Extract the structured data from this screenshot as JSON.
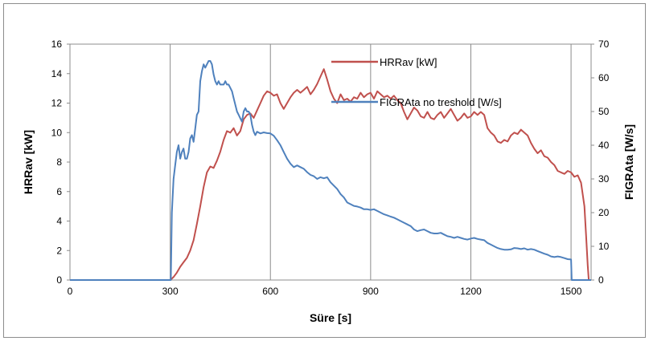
{
  "chart_data": {
    "type": "line",
    "xlabel": "Süre [s]",
    "ylabel_left": "HRRav [kW]",
    "ylabel_right": "FIGRAta [W/s]",
    "xlim": [
      0,
      1560
    ],
    "ylim_left": [
      0,
      16
    ],
    "ylim_right": [
      0,
      70
    ],
    "x_ticks": [
      0,
      300,
      600,
      900,
      1200,
      1500
    ],
    "y_ticks_left": [
      0,
      2,
      4,
      6,
      8,
      10,
      12,
      14,
      16
    ],
    "y_ticks_right": [
      0,
      10,
      20,
      30,
      40,
      50,
      60,
      70
    ],
    "grid": "vertical",
    "legend_position": "top-right",
    "series": [
      {
        "name": "HRRav [kW]",
        "axis": "left",
        "color": "#c0504d",
        "points": [
          [
            0,
            0
          ],
          [
            300,
            0
          ],
          [
            305,
            0.1
          ],
          [
            310,
            0.2
          ],
          [
            320,
            0.5
          ],
          [
            330,
            0.9
          ],
          [
            340,
            1.2
          ],
          [
            350,
            1.5
          ],
          [
            360,
            2.0
          ],
          [
            370,
            2.7
          ],
          [
            380,
            3.8
          ],
          [
            390,
            5.0
          ],
          [
            400,
            6.3
          ],
          [
            410,
            7.3
          ],
          [
            420,
            7.7
          ],
          [
            430,
            7.6
          ],
          [
            440,
            8.1
          ],
          [
            450,
            8.7
          ],
          [
            460,
            9.5
          ],
          [
            470,
            10.1
          ],
          [
            480,
            10.0
          ],
          [
            490,
            10.3
          ],
          [
            500,
            9.8
          ],
          [
            510,
            10.1
          ],
          [
            520,
            10.9
          ],
          [
            530,
            11.2
          ],
          [
            540,
            11.3
          ],
          [
            550,
            11.0
          ],
          [
            560,
            11.5
          ],
          [
            570,
            12.0
          ],
          [
            580,
            12.5
          ],
          [
            590,
            12.8
          ],
          [
            600,
            12.7
          ],
          [
            610,
            12.5
          ],
          [
            620,
            12.6
          ],
          [
            630,
            12.0
          ],
          [
            640,
            11.6
          ],
          [
            650,
            12.0
          ],
          [
            660,
            12.4
          ],
          [
            670,
            12.7
          ],
          [
            680,
            12.9
          ],
          [
            690,
            12.7
          ],
          [
            700,
            12.9
          ],
          [
            710,
            13.1
          ],
          [
            720,
            12.6
          ],
          [
            730,
            12.9
          ],
          [
            740,
            13.3
          ],
          [
            750,
            13.8
          ],
          [
            760,
            14.3
          ],
          [
            770,
            13.6
          ],
          [
            780,
            12.8
          ],
          [
            790,
            12.3
          ],
          [
            800,
            12.0
          ],
          [
            810,
            12.6
          ],
          [
            820,
            12.2
          ],
          [
            830,
            12.3
          ],
          [
            840,
            12.1
          ],
          [
            850,
            12.4
          ],
          [
            860,
            12.3
          ],
          [
            870,
            12.7
          ],
          [
            880,
            12.4
          ],
          [
            890,
            12.6
          ],
          [
            900,
            12.7
          ],
          [
            910,
            12.3
          ],
          [
            920,
            12.8
          ],
          [
            930,
            12.6
          ],
          [
            940,
            12.4
          ],
          [
            950,
            12.5
          ],
          [
            960,
            12.3
          ],
          [
            970,
            12.5
          ],
          [
            980,
            12.2
          ],
          [
            990,
            12.0
          ],
          [
            1000,
            11.4
          ],
          [
            1010,
            10.9
          ],
          [
            1020,
            11.3
          ],
          [
            1030,
            11.7
          ],
          [
            1040,
            11.5
          ],
          [
            1050,
            11.1
          ],
          [
            1060,
            11.0
          ],
          [
            1070,
            11.4
          ],
          [
            1080,
            11.0
          ],
          [
            1090,
            10.9
          ],
          [
            1100,
            11.2
          ],
          [
            1110,
            11.4
          ],
          [
            1120,
            11.0
          ],
          [
            1130,
            11.3
          ],
          [
            1140,
            11.6
          ],
          [
            1150,
            11.2
          ],
          [
            1160,
            10.8
          ],
          [
            1170,
            11.0
          ],
          [
            1180,
            11.3
          ],
          [
            1190,
            11.0
          ],
          [
            1200,
            11.1
          ],
          [
            1210,
            11.4
          ],
          [
            1220,
            11.2
          ],
          [
            1230,
            11.4
          ],
          [
            1240,
            11.2
          ],
          [
            1250,
            10.3
          ],
          [
            1260,
            10.0
          ],
          [
            1270,
            9.8
          ],
          [
            1280,
            9.4
          ],
          [
            1290,
            9.3
          ],
          [
            1300,
            9.5
          ],
          [
            1310,
            9.4
          ],
          [
            1320,
            9.8
          ],
          [
            1330,
            10.0
          ],
          [
            1340,
            9.9
          ],
          [
            1350,
            10.2
          ],
          [
            1360,
            10.0
          ],
          [
            1370,
            9.8
          ],
          [
            1380,
            9.3
          ],
          [
            1390,
            8.9
          ],
          [
            1400,
            8.6
          ],
          [
            1410,
            8.8
          ],
          [
            1420,
            8.4
          ],
          [
            1430,
            8.3
          ],
          [
            1440,
            8.0
          ],
          [
            1450,
            7.8
          ],
          [
            1460,
            7.4
          ],
          [
            1470,
            7.3
          ],
          [
            1480,
            7.2
          ],
          [
            1490,
            7.4
          ],
          [
            1500,
            7.3
          ],
          [
            1510,
            7.0
          ],
          [
            1520,
            7.1
          ],
          [
            1530,
            6.6
          ],
          [
            1540,
            5.0
          ],
          [
            1545,
            3.0
          ],
          [
            1550,
            1.0
          ],
          [
            1553,
            0
          ]
        ]
      },
      {
        "name": "FIGRAta no treshold [W/s]",
        "axis": "right",
        "color": "#4f81bd",
        "points": [
          [
            0,
            0
          ],
          [
            302,
            0
          ],
          [
            305,
            20
          ],
          [
            310,
            30
          ],
          [
            315,
            34
          ],
          [
            320,
            38
          ],
          [
            325,
            40
          ],
          [
            330,
            36
          ],
          [
            335,
            38
          ],
          [
            340,
            39
          ],
          [
            345,
            36
          ],
          [
            350,
            36
          ],
          [
            355,
            38
          ],
          [
            360,
            42
          ],
          [
            365,
            43
          ],
          [
            370,
            41
          ],
          [
            375,
            45
          ],
          [
            380,
            49
          ],
          [
            385,
            50
          ],
          [
            390,
            59
          ],
          [
            395,
            62
          ],
          [
            400,
            64
          ],
          [
            405,
            63
          ],
          [
            410,
            64
          ],
          [
            415,
            65
          ],
          [
            420,
            65
          ],
          [
            425,
            64
          ],
          [
            430,
            61
          ],
          [
            435,
            59
          ],
          [
            440,
            58
          ],
          [
            445,
            59
          ],
          [
            450,
            58
          ],
          [
            455,
            58
          ],
          [
            460,
            58
          ],
          [
            465,
            59
          ],
          [
            470,
            58
          ],
          [
            475,
            58
          ],
          [
            480,
            57
          ],
          [
            485,
            56
          ],
          [
            490,
            54
          ],
          [
            495,
            52
          ],
          [
            500,
            50
          ],
          [
            505,
            49
          ],
          [
            510,
            48
          ],
          [
            515,
            47
          ],
          [
            520,
            50
          ],
          [
            525,
            51
          ],
          [
            530,
            50
          ],
          [
            535,
            50
          ],
          [
            540,
            49
          ],
          [
            545,
            46
          ],
          [
            550,
            44
          ],
          [
            555,
            43
          ],
          [
            560,
            44
          ],
          [
            570,
            43.5
          ],
          [
            580,
            43.8
          ],
          [
            590,
            43.6
          ],
          [
            600,
            43.5
          ],
          [
            610,
            42.8
          ],
          [
            620,
            41.5
          ],
          [
            630,
            40.0
          ],
          [
            640,
            38.0
          ],
          [
            650,
            36.0
          ],
          [
            660,
            34.5
          ],
          [
            670,
            33.5
          ],
          [
            680,
            34.0
          ],
          [
            690,
            33.5
          ],
          [
            700,
            33.0
          ],
          [
            710,
            32.0
          ],
          [
            720,
            31.2
          ],
          [
            730,
            30.8
          ],
          [
            740,
            30.0
          ],
          [
            750,
            30.5
          ],
          [
            760,
            30.2
          ],
          [
            770,
            30.5
          ],
          [
            780,
            29.0
          ],
          [
            790,
            28.0
          ],
          [
            800,
            27.0
          ],
          [
            810,
            25.5
          ],
          [
            820,
            24.5
          ],
          [
            830,
            23.0
          ],
          [
            840,
            22.5
          ],
          [
            850,
            22.0
          ],
          [
            860,
            21.8
          ],
          [
            870,
            21.5
          ],
          [
            880,
            21.0
          ],
          [
            890,
            21.0
          ],
          [
            900,
            20.8
          ],
          [
            910,
            21.0
          ],
          [
            920,
            20.5
          ],
          [
            930,
            20.0
          ],
          [
            940,
            19.5
          ],
          [
            950,
            19.2
          ],
          [
            960,
            18.8
          ],
          [
            970,
            18.5
          ],
          [
            980,
            18.0
          ],
          [
            990,
            17.5
          ],
          [
            1000,
            17.0
          ],
          [
            1010,
            16.5
          ],
          [
            1020,
            16.0
          ],
          [
            1030,
            15.0
          ],
          [
            1040,
            14.5
          ],
          [
            1050,
            14.8
          ],
          [
            1060,
            15.0
          ],
          [
            1070,
            14.5
          ],
          [
            1080,
            14.0
          ],
          [
            1090,
            13.8
          ],
          [
            1100,
            13.8
          ],
          [
            1110,
            14.0
          ],
          [
            1120,
            13.5
          ],
          [
            1130,
            13.0
          ],
          [
            1140,
            12.8
          ],
          [
            1150,
            12.5
          ],
          [
            1160,
            12.8
          ],
          [
            1170,
            12.5
          ],
          [
            1180,
            12.2
          ],
          [
            1190,
            12.0
          ],
          [
            1200,
            12.3
          ],
          [
            1210,
            12.5
          ],
          [
            1220,
            12.2
          ],
          [
            1230,
            12.0
          ],
          [
            1240,
            11.8
          ],
          [
            1250,
            11.0
          ],
          [
            1260,
            10.5
          ],
          [
            1270,
            10.0
          ],
          [
            1280,
            9.5
          ],
          [
            1290,
            9.2
          ],
          [
            1300,
            9.0
          ],
          [
            1310,
            9.0
          ],
          [
            1320,
            9.1
          ],
          [
            1330,
            9.5
          ],
          [
            1340,
            9.4
          ],
          [
            1350,
            9.2
          ],
          [
            1360,
            9.4
          ],
          [
            1370,
            9.0
          ],
          [
            1380,
            9.2
          ],
          [
            1390,
            9.0
          ],
          [
            1400,
            8.6
          ],
          [
            1410,
            8.2
          ],
          [
            1420,
            7.8
          ],
          [
            1430,
            7.5
          ],
          [
            1440,
            7.0
          ],
          [
            1450,
            6.8
          ],
          [
            1460,
            7.0
          ],
          [
            1470,
            6.8
          ],
          [
            1480,
            6.5
          ],
          [
            1490,
            6.2
          ],
          [
            1500,
            6.1
          ],
          [
            1502,
            0
          ],
          [
            1560,
            0
          ]
        ]
      }
    ]
  }
}
